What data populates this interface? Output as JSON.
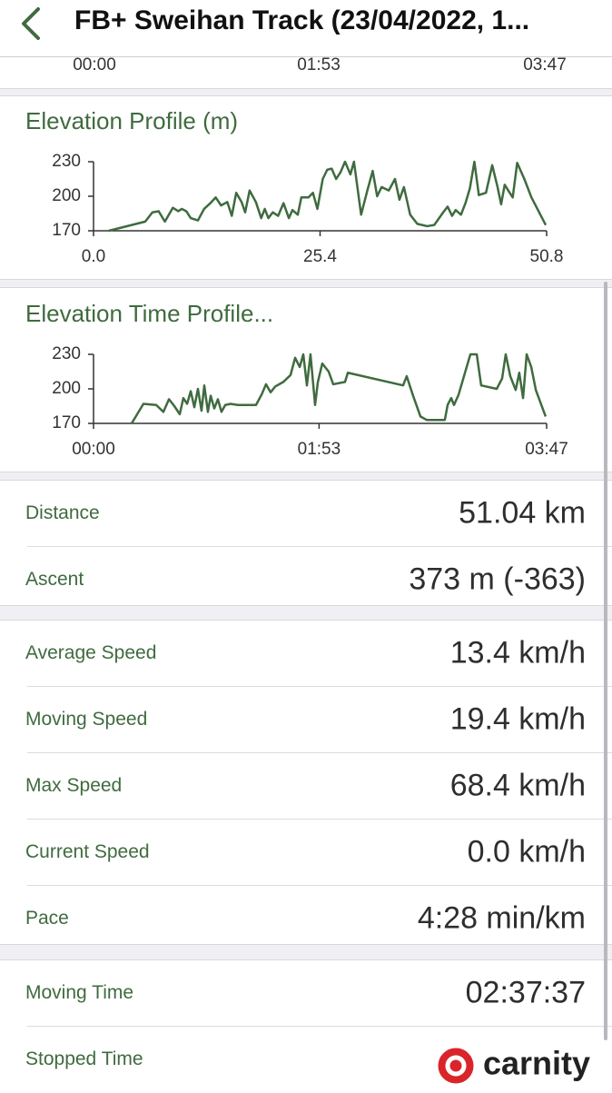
{
  "header": {
    "title": "FB+ Sweihan Track (23/04/2022, 1..."
  },
  "top_axis": {
    "labels": [
      "00:00",
      "01:53",
      "03:47"
    ]
  },
  "chart_data": [
    {
      "type": "line",
      "title": "Elevation Profile (m)",
      "color": "#3f6b3f",
      "x": [
        1.7,
        5.8,
        6.6,
        7.3,
        8.0,
        8.9,
        9.5,
        9.9,
        10.4,
        10.9,
        11.7,
        12.4,
        13.1,
        13.7,
        14.3,
        15.0,
        15.5,
        16.0,
        16.6,
        17.0,
        17.5,
        18.2,
        18.8,
        19.2,
        19.6,
        20.1,
        20.7,
        21.3,
        21.9,
        22.3,
        22.9,
        23.3,
        24.1,
        24.6,
        25.1,
        25.7,
        26.2,
        26.7,
        27.2,
        27.7,
        28.2,
        28.8,
        29.2,
        30.0,
        30.7,
        31.3,
        31.8,
        32.3,
        33.1,
        33.8,
        34.3,
        34.8,
        35.5,
        36.3,
        37.4,
        38.2,
        39.2,
        39.7,
        40.2,
        40.6,
        41.2,
        41.7,
        42.2,
        42.7,
        43.2,
        44.0,
        44.7,
        45.3,
        45.7,
        46.1,
        46.5,
        47.0,
        47.5,
        48.3,
        49.1,
        50.7
      ],
      "values": [
        170,
        178,
        186,
        187,
        178,
        190,
        187,
        189,
        187,
        181,
        179,
        189,
        194,
        199,
        192,
        195,
        183,
        203,
        195,
        186,
        205,
        195,
        181,
        189,
        181,
        186,
        183,
        194,
        181,
        188,
        184,
        199,
        199,
        203,
        189,
        215,
        223,
        224,
        215,
        221,
        230,
        219,
        230,
        184,
        205,
        222,
        200,
        208,
        205,
        215,
        197,
        208,
        184,
        176,
        174,
        175,
        186,
        191,
        183,
        188,
        184,
        194,
        207,
        230,
        201,
        203,
        227,
        208,
        193,
        210,
        205,
        199,
        229,
        215,
        199,
        175
      ],
      "xlim": [
        0,
        50.8
      ],
      "xticks": [
        {
          "value": 0,
          "label": "0.0"
        },
        25.4,
        50.8
      ],
      "ylim": [
        170,
        230
      ],
      "yticks": [
        170,
        200,
        230
      ]
    },
    {
      "type": "line",
      "title": "Elevation Time Profile...",
      "color": "#3f6b3f",
      "x": [
        19.1,
        25.0,
        31.4,
        35.0,
        37.8,
        40.5,
        43.2,
        45.0,
        46.9,
        48.7,
        50.5,
        52.3,
        54.1,
        55.5,
        57.3,
        58.7,
        60.5,
        62.3,
        64.1,
        66.0,
        68.7,
        72.3,
        81.4,
        84.2,
        86.4,
        88.7,
        91.0,
        95.1,
        98.7,
        101.0,
        103.3,
        105.1,
        106.9,
        108.7,
        111.0,
        112.4,
        114.6,
        117.8,
        120.1,
        126.0,
        127.4,
        155.1,
        156.9,
        160.1,
        163.8,
        166.9,
        176.0,
        177.4,
        179.2,
        180.6,
        182.9,
        186.1,
        188.8,
        192.0,
        194.2,
        202.0,
        204.7,
        206.5,
        208.8,
        211.5,
        213.3,
        215.2,
        217.0,
        219.3,
        221.6,
        226.5
      ],
      "values": [
        170,
        187,
        186,
        180,
        191,
        185,
        178,
        192,
        187,
        198,
        184,
        200,
        181,
        203,
        180,
        194,
        183,
        191,
        180,
        186,
        187,
        186,
        186,
        195,
        204,
        197,
        202,
        206,
        212,
        227,
        219,
        230,
        203,
        230,
        186,
        206,
        222,
        215,
        204,
        206,
        214,
        203,
        211,
        194,
        176,
        173,
        173,
        186,
        192,
        186,
        195,
        214,
        230,
        230,
        203,
        200,
        209,
        230,
        211,
        199,
        214,
        192,
        230,
        219,
        199,
        176
      ],
      "xlim": [
        0,
        227
      ],
      "xticks": [
        {
          "value": 0,
          "label": "00:00"
        },
        {
          "value": 113,
          "label": "01:53"
        },
        {
          "value": 227,
          "label": "03:47"
        }
      ],
      "ylim": [
        170,
        230
      ],
      "yticks": [
        170,
        200,
        230
      ]
    }
  ],
  "stats": [
    [
      {
        "label": "Distance",
        "value": "51.04 km"
      },
      {
        "label": "Ascent",
        "value": "373 m (-363)"
      }
    ],
    [
      {
        "label": "Average Speed",
        "value": "13.4 km/h"
      },
      {
        "label": "Moving Speed",
        "value": "19.4 km/h"
      },
      {
        "label": "Max Speed",
        "value": "68.4 km/h"
      },
      {
        "label": "Current Speed",
        "value": "0.0 km/h"
      },
      {
        "label": "Pace",
        "value": "4:28 min/km"
      }
    ],
    [
      {
        "label": "Moving Time",
        "value": "02:37:37"
      },
      {
        "label": "Stopped Time",
        "value": ""
      }
    ]
  ],
  "watermark": "carnity"
}
